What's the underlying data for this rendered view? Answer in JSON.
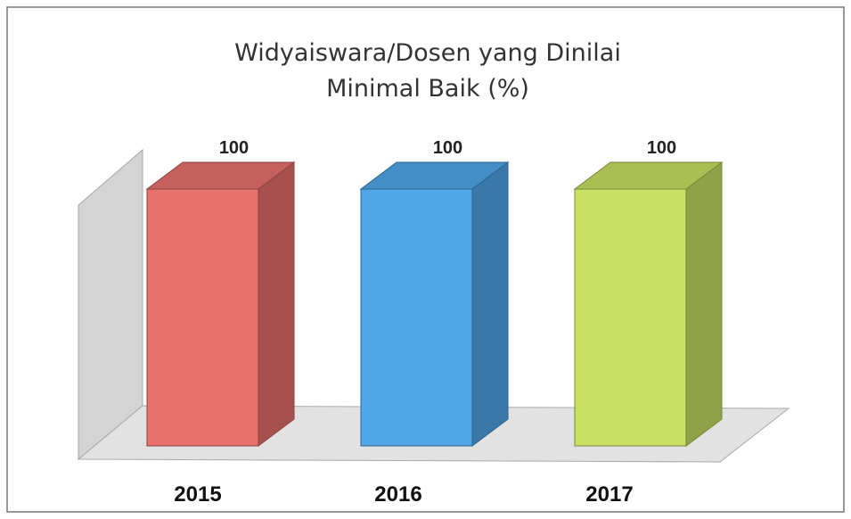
{
  "chart_data": {
    "type": "bar3d",
    "title": "Widyaiswara/Dosen yang Dinilai Minimal Baik (%)",
    "categories": [
      "2015",
      "2016",
      "2017"
    ],
    "values": [
      100,
      100,
      100
    ],
    "colors": [
      "#e8716d",
      "#4fa7e9",
      "#c9e062"
    ]
  }
}
